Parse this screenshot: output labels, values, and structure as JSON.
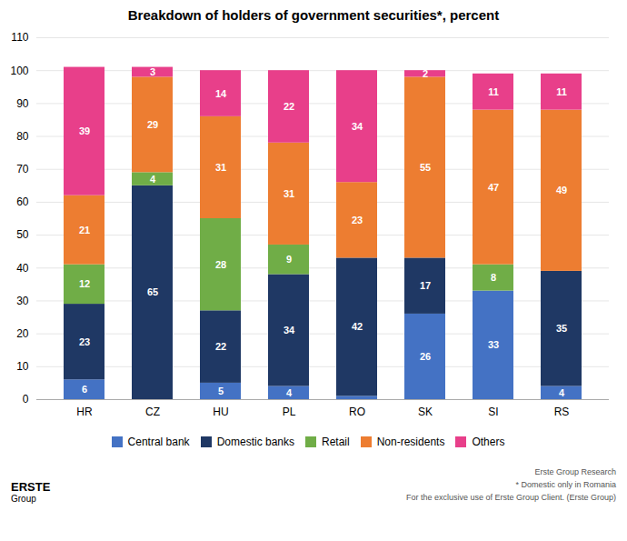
{
  "chart_data": {
    "type": "bar",
    "stacked": true,
    "title": "Breakdown of holders of government securities*, percent",
    "categories": [
      "HR",
      "CZ",
      "HU",
      "PL",
      "RO",
      "SK",
      "SI",
      "RS"
    ],
    "series": [
      {
        "name": "Central bank",
        "color": "#4472C4",
        "values": [
          6,
          0,
          5,
          4,
          1,
          26,
          33,
          4
        ],
        "value_labels": [
          "6",
          null,
          "5",
          "4",
          null,
          "26",
          "33",
          "4"
        ]
      },
      {
        "name": "Domestic banks",
        "color": "#1F3864",
        "values": [
          23,
          65,
          22,
          34,
          42,
          17,
          0,
          35
        ],
        "value_labels": [
          "23",
          "65",
          "22",
          "34",
          "42",
          "17",
          null,
          "35"
        ]
      },
      {
        "name": "Retail",
        "color": "#70AD47",
        "values": [
          12,
          4,
          28,
          9,
          0,
          0,
          8,
          0
        ],
        "value_labels": [
          "12",
          "4",
          "28",
          "9",
          null,
          null,
          "8",
          null
        ]
      },
      {
        "name": "Non-residents",
        "color": "#ED7D31",
        "values": [
          21,
          29,
          31,
          31,
          23,
          55,
          47,
          49
        ],
        "value_labels": [
          "21",
          "29",
          "31",
          "31",
          "23",
          "55",
          "47",
          "49"
        ]
      },
      {
        "name": "Others",
        "color": "#E83F8A",
        "values": [
          39,
          3,
          14,
          22,
          34,
          2,
          11,
          11
        ],
        "value_labels": [
          "39",
          "3",
          "14",
          "22",
          "34",
          "2",
          "11",
          "11"
        ]
      }
    ],
    "ylim": [
      0,
      110
    ],
    "yticks": [
      0,
      10,
      20,
      30,
      40,
      50,
      60,
      70,
      80,
      90,
      100,
      110
    ],
    "grid": true,
    "legend": "bottom",
    "data_labels": true,
    "annotations": [
      "Erste Group Research",
      "* Domestic only in Romania",
      "For the exclusive use of Erste Group Client. (Erste Group)",
      "ERSTE",
      "Group"
    ]
  }
}
